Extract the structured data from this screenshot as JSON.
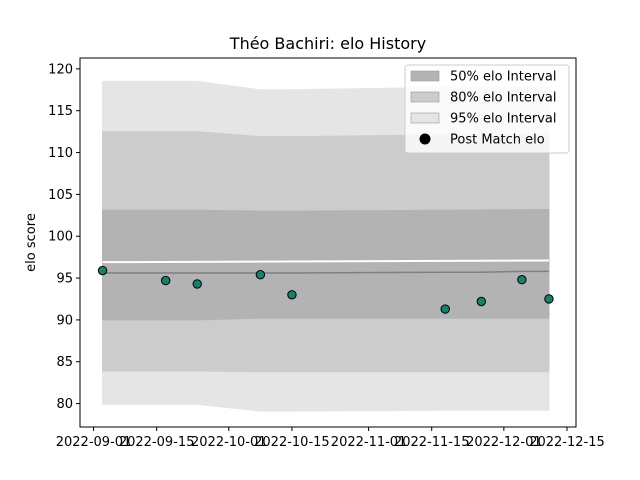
{
  "chart_data": {
    "type": "line",
    "title": "Théo Bachiri: elo History",
    "xlabel": "",
    "ylabel": "elo score",
    "xlim": [
      "2022-08-29",
      "2022-12-17"
    ],
    "ylim": [
      77.2,
      121.3
    ],
    "yticks": [
      80,
      85,
      90,
      95,
      100,
      105,
      110,
      115,
      120
    ],
    "xticks": [
      "2022-09-01",
      "2022-09-15",
      "2022-10-01",
      "2022-10-15",
      "2022-11-01",
      "2022-11-15",
      "2022-12-01",
      "2022-12-15"
    ],
    "legend_position": "top-right",
    "legend": [
      {
        "label": "50% elo Interval",
        "color": "#b3b3b3"
      },
      {
        "label": "80% elo Interval",
        "color": "#cccccc"
      },
      {
        "label": "95% elo Interval",
        "color": "#e5e5e5"
      },
      {
        "label": "Post Match elo",
        "color": "#000000"
      }
    ],
    "mean_line": {
      "color": "#808080",
      "x": [
        "2022-09-03",
        "2022-09-17",
        "2022-09-24",
        "2022-10-08",
        "2022-10-15",
        "2022-11-18",
        "2022-11-26",
        "2022-12-05",
        "2022-12-11"
      ],
      "y": [
        95.6,
        95.6,
        95.6,
        95.6,
        95.6,
        95.7,
        95.7,
        95.8,
        95.8
      ]
    },
    "bands": [
      {
        "name": "95%",
        "color": "#e5e5e5",
        "x": [
          "2022-09-03",
          "2022-09-24",
          "2022-10-08",
          "2022-10-15",
          "2022-11-18",
          "2022-12-11"
        ],
        "upper": [
          118.5,
          118.5,
          117.5,
          117.5,
          117.8,
          117.8
        ],
        "lower": [
          79.9,
          79.9,
          79.1,
          79.1,
          79.2,
          79.2
        ]
      },
      {
        "name": "80%",
        "color": "#cccccc",
        "x": [
          "2022-09-03",
          "2022-09-24",
          "2022-10-08",
          "2022-10-15",
          "2022-11-18",
          "2022-12-11"
        ],
        "upper": [
          112.5,
          112.5,
          111.9,
          111.9,
          112.1,
          112.1
        ],
        "lower": [
          83.9,
          83.9,
          83.8,
          83.8,
          83.8,
          83.8
        ]
      },
      {
        "name": "50%",
        "color": "#b3b3b3",
        "x": [
          "2022-09-03",
          "2022-09-24",
          "2022-10-08",
          "2022-10-15",
          "2022-11-18",
          "2022-12-11"
        ],
        "upper": [
          103.1,
          103.1,
          103.0,
          103.0,
          103.1,
          103.2
        ],
        "lower": [
          90.0,
          90.0,
          90.2,
          90.2,
          90.2,
          90.2
        ]
      }
    ],
    "white_line": {
      "x": [
        "2022-09-03",
        "2022-12-11"
      ],
      "y": [
        96.9,
        97.1
      ]
    },
    "points": {
      "name": "Post Match elo",
      "color": "#1a7f6b",
      "edge": "#000000",
      "x": [
        "2022-09-03",
        "2022-09-17",
        "2022-09-24",
        "2022-10-08",
        "2022-10-15",
        "2022-11-18",
        "2022-11-26",
        "2022-12-05",
        "2022-12-11"
      ],
      "y": [
        95.9,
        94.7,
        94.3,
        95.4,
        93.0,
        91.3,
        92.2,
        94.8,
        92.5
      ]
    }
  }
}
